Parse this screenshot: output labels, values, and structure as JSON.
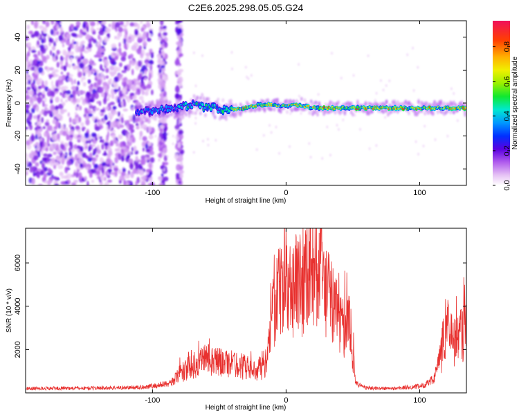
{
  "title": "C2E6.2025.298.05.05.G24",
  "chart_data": [
    {
      "type": "heatmap",
      "xlabel": "Height of straight line (km)",
      "ylabel": "Frequency (Hz)",
      "xlim": [
        -195,
        135
      ],
      "ylim": [
        -50,
        50
      ],
      "x_ticks": [
        -100,
        0,
        100
      ],
      "y_ticks": [
        -40,
        -20,
        0,
        20,
        40
      ],
      "colorbar": {
        "label": "Normalized spectral amplitude",
        "range": [
          0.0,
          0.95
        ],
        "ticks": [
          0.0,
          0.2,
          0.4,
          0.6,
          0.8
        ]
      },
      "ridge": {
        "description_points_x": [
          -110,
          -100,
          -90,
          -80,
          -70,
          -60,
          -50,
          -40,
          -30,
          -20,
          -10,
          0,
          10,
          20,
          30,
          40,
          50,
          60,
          70,
          80,
          90,
          100,
          110,
          120,
          130
        ],
        "frequency": [
          -6,
          -5,
          -4,
          -3,
          -1,
          -2,
          -4,
          -4,
          -3,
          -1,
          -1,
          -2,
          -1,
          -3,
          -3,
          -3,
          -3,
          -3,
          -3,
          -3,
          -3,
          -3,
          -3,
          -3,
          -3
        ]
      }
    },
    {
      "type": "line",
      "xlabel": "Height of straight line (km)",
      "ylabel": "SNR (10 * v/v)",
      "xlim": [
        -195,
        135
      ],
      "ylim": [
        0,
        7600
      ],
      "x_ticks": [
        -100,
        0,
        100
      ],
      "y_ticks": [
        2000,
        4000,
        6000
      ],
      "series_color": "#e8302e",
      "envelope": {
        "x": [
          -195,
          -150,
          -110,
          -95,
          -85,
          -80,
          -70,
          -60,
          -50,
          -40,
          -30,
          -25,
          -20,
          -15,
          -12,
          -10,
          -5,
          0,
          5,
          10,
          15,
          20,
          25,
          30,
          35,
          40,
          45,
          48,
          52,
          55,
          60,
          70,
          80,
          90,
          100,
          105,
          110,
          115,
          120,
          125,
          130,
          135
        ],
        "y": [
          200,
          220,
          250,
          350,
          500,
          900,
          1300,
          1700,
          1500,
          1400,
          1300,
          1000,
          1200,
          1500,
          2500,
          4500,
          4800,
          5000,
          5200,
          5500,
          5800,
          6300,
          5800,
          5000,
          4300,
          3500,
          3000,
          3300,
          500,
          350,
          250,
          200,
          200,
          250,
          300,
          400,
          600,
          1500,
          3500,
          2500,
          2800,
          3000
        ]
      }
    }
  ]
}
